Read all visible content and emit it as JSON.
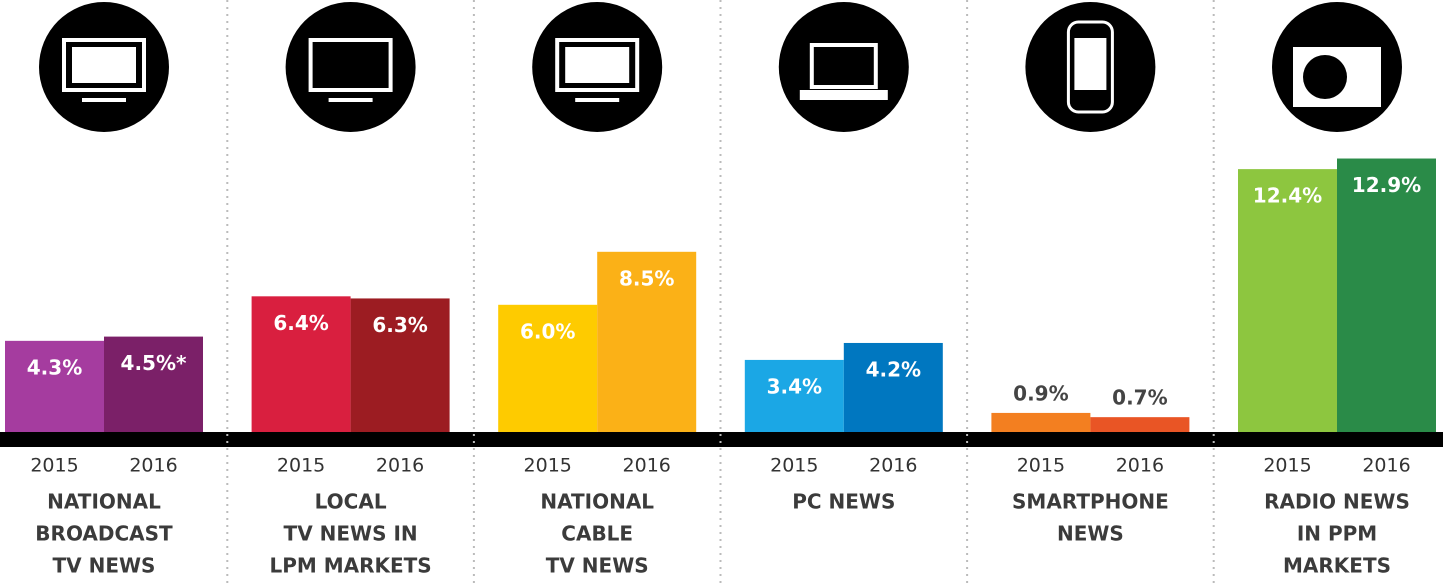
{
  "chart_data": {
    "type": "bar",
    "categories": [
      [
        "NATIONAL",
        "BROADCAST",
        "TV NEWS"
      ],
      [
        "LOCAL",
        "TV NEWS IN",
        "LPM MARKETS"
      ],
      [
        "NATIONAL",
        "CABLE",
        "TV NEWS"
      ],
      [
        "PC NEWS"
      ],
      [
        "SMARTPHONE",
        "NEWS"
      ],
      [
        "RADIO NEWS",
        "IN PPM",
        "MARKETS"
      ]
    ],
    "series": [
      {
        "name": "2015",
        "colors": [
          "#a53c9f",
          "#d91f3f",
          "#fecb00",
          "#1ba7e5",
          "#f37f20",
          "#8dc63f"
        ],
        "values": [
          4.3,
          6.4,
          6.0,
          3.4,
          0.9,
          12.4
        ],
        "value_labels": [
          "4.3%",
          "6.4%",
          "6.0%",
          "3.4%",
          "0.9%",
          "12.4%"
        ]
      },
      {
        "name": "2016",
        "colors": [
          "#7b2068",
          "#9c1c22",
          "#fbb117",
          "#0077c0",
          "#e95525",
          "#2a8b48"
        ],
        "values": [
          4.5,
          6.3,
          8.5,
          4.2,
          0.7,
          12.9
        ],
        "value_labels": [
          "4.5%*",
          "6.3%",
          "8.5%",
          "4.2%",
          "0.7%",
          "12.9%"
        ]
      }
    ]
  }
}
